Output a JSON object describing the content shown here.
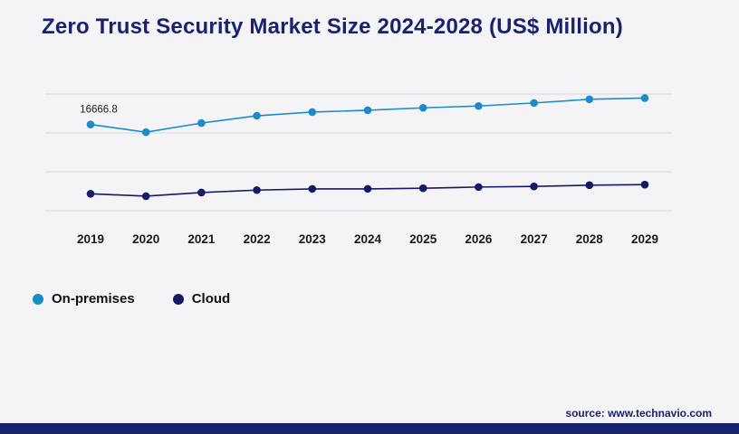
{
  "title": "Zero Trust Security Market Size 2024-2028 (US$ Million)",
  "source": "source: www.technavio.com",
  "colors": {
    "accent_navy": "#19226e",
    "on_premises": "#1d8bc8",
    "cloud": "#141b64",
    "gridline": "#d9d9dc",
    "axis_label": "#1a1a1a"
  },
  "chart_data": {
    "type": "line",
    "title": "Zero Trust Security Market Size 2024-2028 (US$ Million)",
    "categories": [
      "2019",
      "2020",
      "2021",
      "2022",
      "2023",
      "2024",
      "2025",
      "2026",
      "2027",
      "2028",
      "2029"
    ],
    "series": [
      {
        "name": "On-premises",
        "color": "#1d8bc8",
        "values": [
          16666.8,
          15400,
          16900,
          18100,
          18700,
          19000,
          19400,
          19700,
          20200,
          20800,
          21000
        ]
      },
      {
        "name": "Cloud",
        "color": "#141b64",
        "values": [
          5300,
          4900,
          5500,
          5900,
          6100,
          6100,
          6200,
          6400,
          6500,
          6700,
          6800
        ]
      }
    ],
    "annotations": [
      {
        "series": "On-premises",
        "category": "2019",
        "text": "16666.8"
      }
    ],
    "ylim": [
      0,
      23000
    ],
    "grid": "horizontal",
    "legend_position": "bottom-left",
    "note": "only the 2019 On-premises point is labeled in the image; other values estimated from pixel positions"
  }
}
